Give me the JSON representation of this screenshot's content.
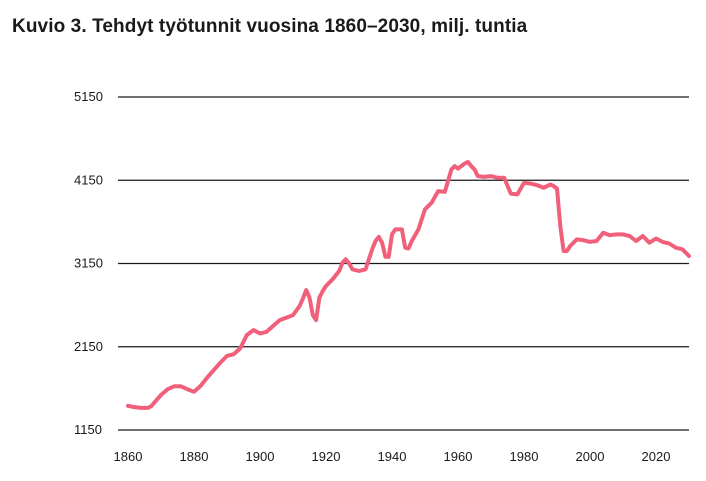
{
  "chart_data": {
    "type": "line",
    "title": "Kuvio 3. Tehdyt työtunnit vuosina 1860–2030, milj. tuntia",
    "xlabel": "",
    "ylabel": "",
    "xlim": [
      1860,
      2030
    ],
    "ylim": [
      1150,
      5150
    ],
    "yticks": [
      5150,
      4150,
      3150,
      2150,
      1150
    ],
    "xticks": [
      1860,
      1880,
      1900,
      1920,
      1940,
      1960,
      1980,
      2000,
      2020
    ],
    "grid": true,
    "line_color": "#f0607a",
    "series": [
      {
        "x": [
          1860,
          1862,
          1864,
          1866,
          1867,
          1868,
          1870,
          1872,
          1874,
          1876,
          1878,
          1880,
          1882,
          1884,
          1886,
          1888,
          1890,
          1892,
          1894,
          1896,
          1898,
          1900,
          1902,
          1904,
          1906,
          1908,
          1910,
          1912,
          1913,
          1914,
          1915,
          1916,
          1917,
          1918,
          1919,
          1920,
          1922,
          1924,
          1925,
          1926,
          1927,
          1928,
          1930,
          1932,
          1933,
          1934,
          1935,
          1936,
          1937,
          1938,
          1939,
          1940,
          1941,
          1942,
          1943,
          1944,
          1945,
          1946,
          1948,
          1950,
          1952,
          1954,
          1956,
          1958,
          1959,
          1960,
          1962,
          1963,
          1964,
          1965,
          1966,
          1968,
          1970,
          1972,
          1974,
          1976,
          1978,
          1980,
          1982,
          1984,
          1986,
          1988,
          1989,
          1990,
          1991,
          1992,
          1993,
          1994,
          1996,
          1998,
          2000,
          2002,
          2004,
          2006,
          2008,
          2010,
          2012,
          2014,
          2016,
          2018,
          2020,
          2022,
          2024,
          2026,
          2028,
          2030
        ],
        "values": [
          1440,
          1425,
          1415,
          1415,
          1435,
          1480,
          1570,
          1640,
          1675,
          1675,
          1640,
          1610,
          1680,
          1780,
          1870,
          1960,
          2040,
          2060,
          2130,
          2290,
          2350,
          2310,
          2330,
          2400,
          2470,
          2500,
          2530,
          2640,
          2730,
          2830,
          2740,
          2530,
          2470,
          2740,
          2820,
          2880,
          2960,
          3060,
          3160,
          3200,
          3150,
          3080,
          3060,
          3080,
          3200,
          3320,
          3420,
          3470,
          3400,
          3230,
          3230,
          3500,
          3560,
          3560,
          3560,
          3340,
          3330,
          3420,
          3560,
          3800,
          3880,
          4020,
          4010,
          4280,
          4320,
          4290,
          4350,
          4370,
          4320,
          4280,
          4200,
          4190,
          4200,
          4180,
          4180,
          3990,
          3980,
          4120,
          4110,
          4090,
          4060,
          4100,
          4080,
          4050,
          3600,
          3300,
          3300,
          3360,
          3440,
          3430,
          3410,
          3420,
          3520,
          3490,
          3500,
          3500,
          3480,
          3420,
          3480,
          3400,
          3450,
          3410,
          3390,
          3340,
          3320,
          3240
        ]
      }
    ]
  }
}
